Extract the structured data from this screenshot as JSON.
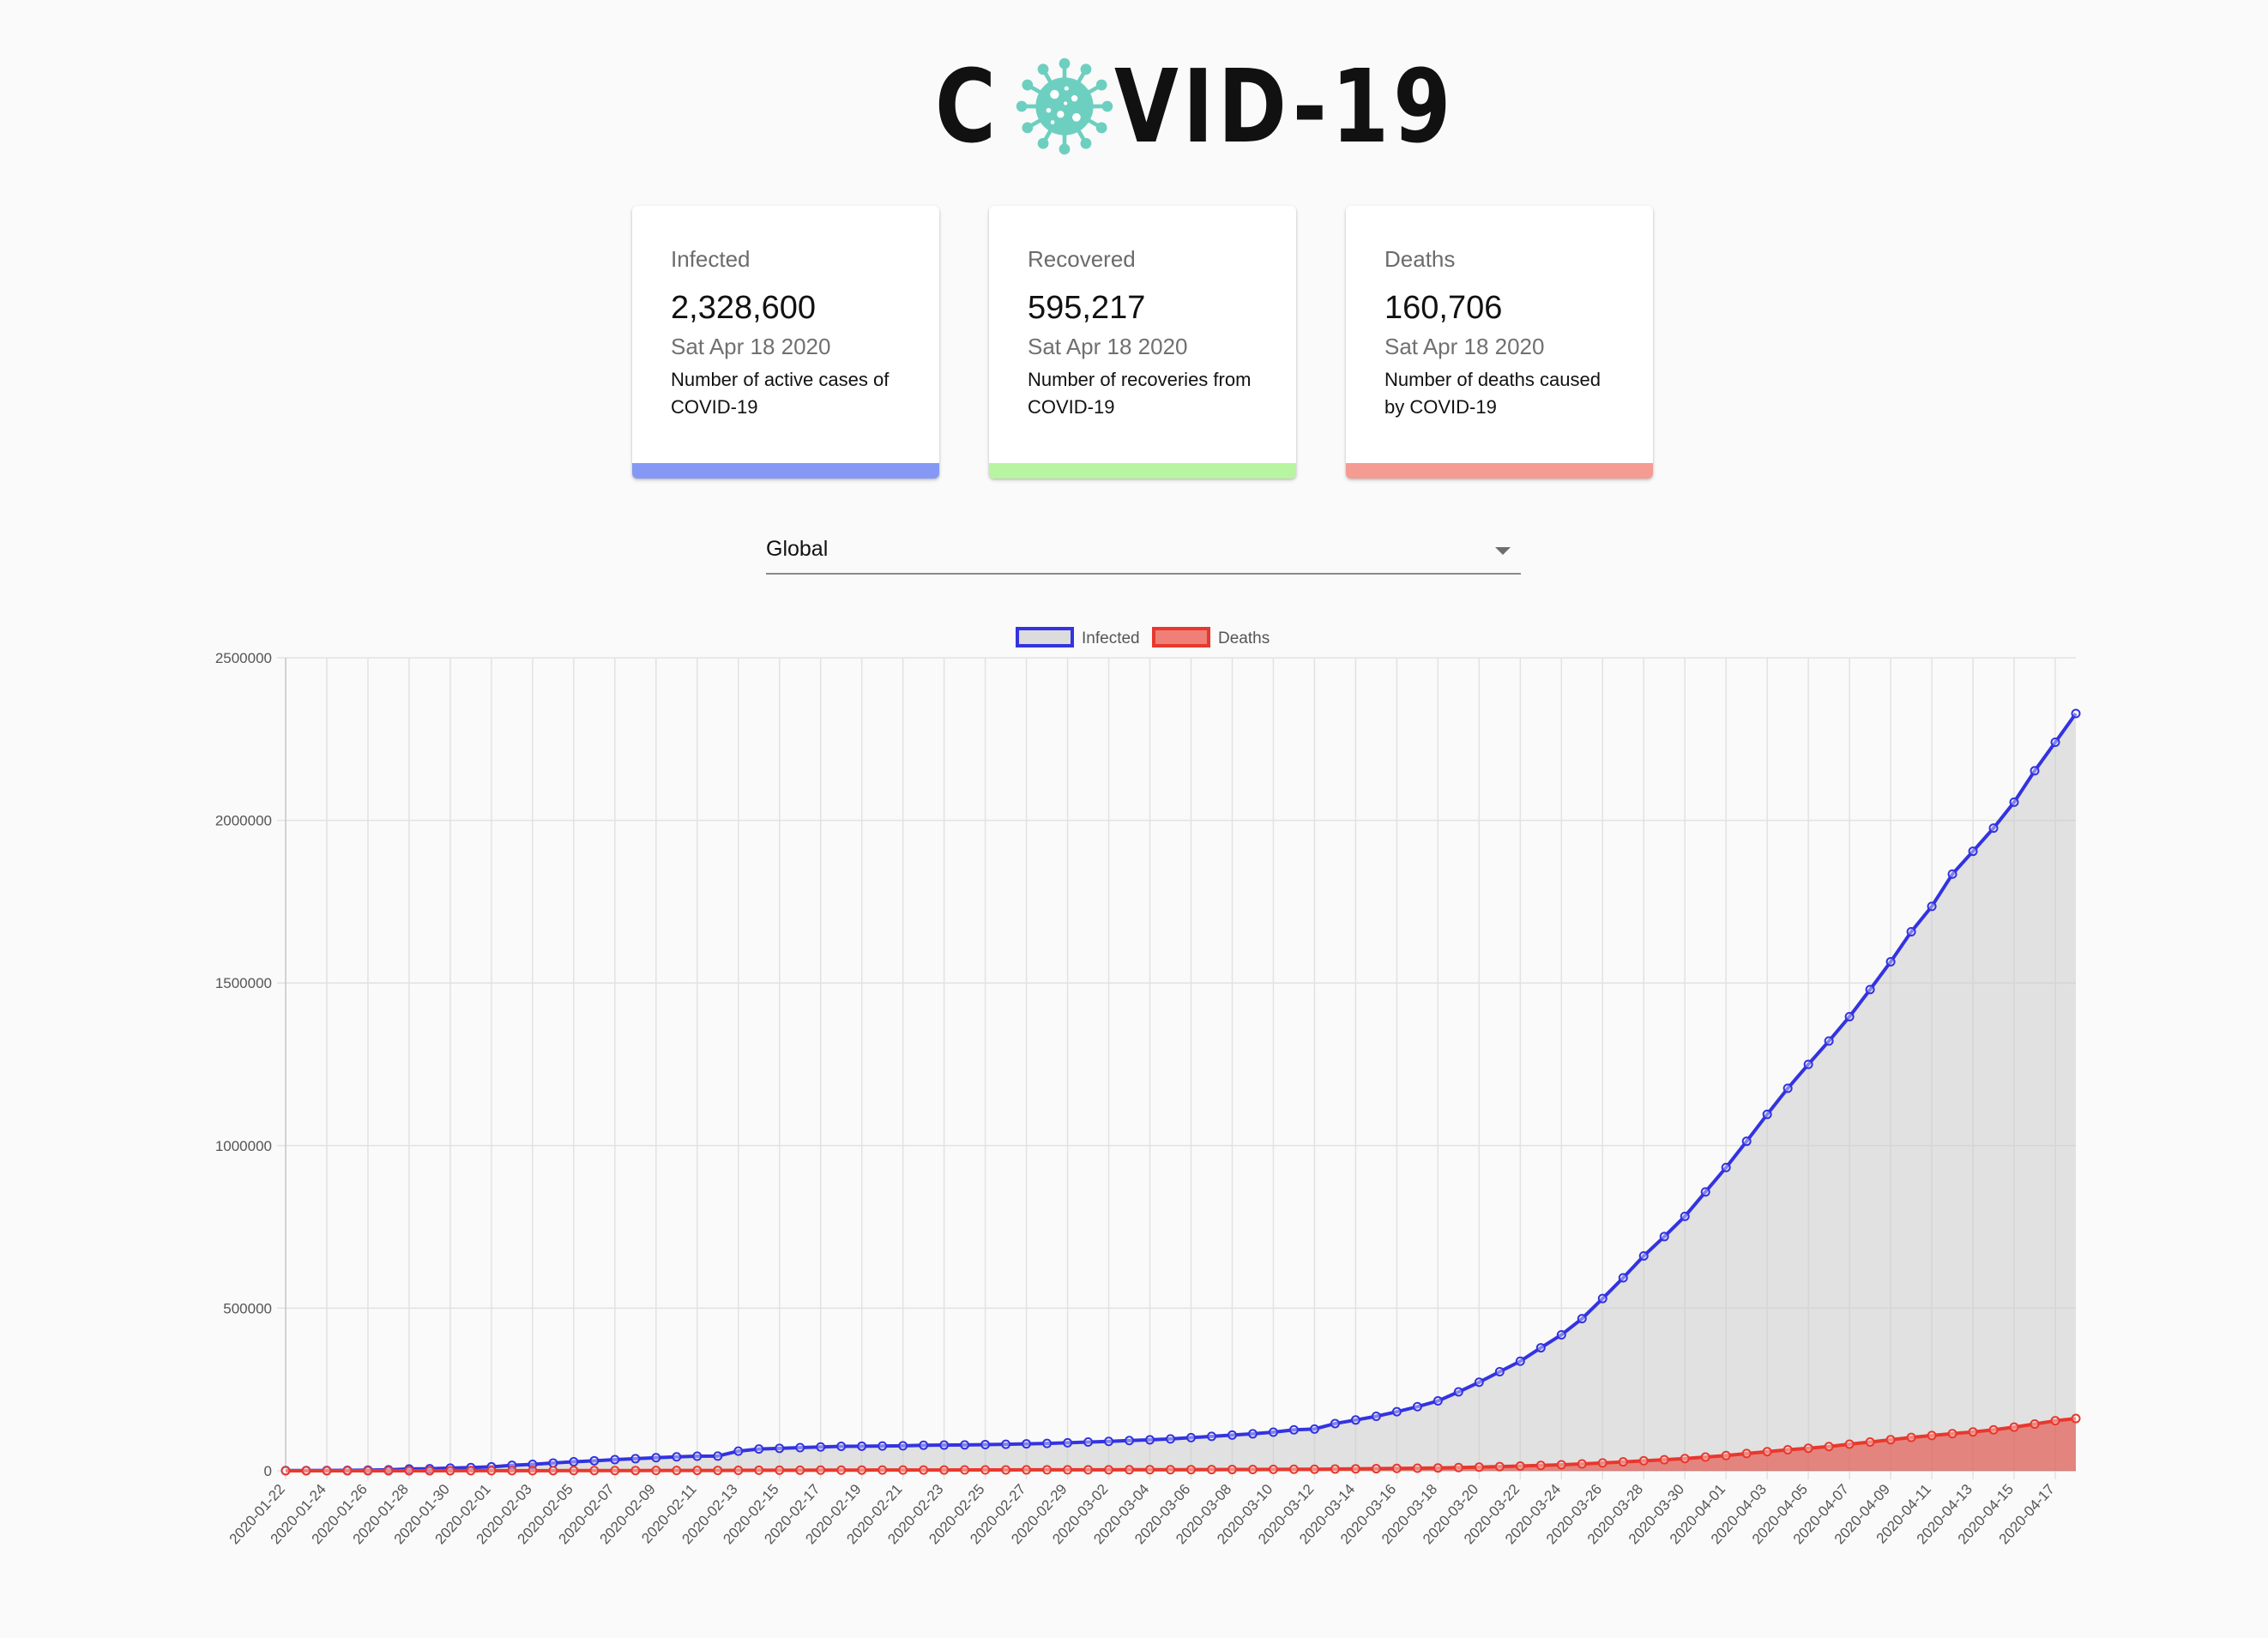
{
  "app": {
    "logo_text_left": "C",
    "logo_text_right": "VID-19",
    "logo_icon": "virus-icon",
    "logo_color": "#6dcfc0"
  },
  "cards": [
    {
      "title": "Infected",
      "value": "2,328,600",
      "date": "Sat Apr 18 2020",
      "description": "Number of active cases of COVID-19",
      "bar_color": "#8599f4"
    },
    {
      "title": "Recovered",
      "value": "595,217",
      "date": "Sat Apr 18 2020",
      "description": "Number of recoveries from COVID-19",
      "bar_color": "#b8f5a0"
    },
    {
      "title": "Deaths",
      "value": "160,706",
      "date": "Sat Apr 18 2020",
      "description": "Number of deaths caused by COVID-19",
      "bar_color": "#f49b92"
    }
  ],
  "country_select": {
    "selected": "Global",
    "icon": "dropdown-arrow-icon"
  },
  "chart_data": {
    "type": "line",
    "start_date": "2020-01-22",
    "end_date": "2020-04-18",
    "tick_step_days": 2,
    "ylim": [
      0,
      2500000
    ],
    "yticks": [
      "0",
      "500000",
      "1000000",
      "1500000",
      "2000000",
      "2500000"
    ],
    "legend": [
      {
        "name": "Infected",
        "stroke": "#3333e0",
        "fill": "#dcdcdc"
      },
      {
        "name": "Deaths",
        "stroke": "#e8382d",
        "fill": "#f07f77"
      }
    ],
    "series": [
      {
        "name": "Infected",
        "stroke": "#3333e0",
        "fill": "rgba(200,200,200,0.5)",
        "values": [
          555,
          654,
          941,
          1434,
          2118,
          2927,
          5578,
          6166,
          8234,
          9927,
          12038,
          16787,
          19881,
          23892,
          27635,
          30794,
          34391,
          37120,
          40150,
          42762,
          44802,
          45221,
          60368,
          66885,
          69030,
          71224,
          73258,
          75136,
          75639,
          76197,
          76819,
          78572,
          78958,
          79561,
          80406,
          81388,
          82746,
          84112,
          86011,
          88369,
          90306,
          92840,
          95120,
          97886,
          101801,
          105847,
          109821,
          113590,
          118620,
          125875,
          128352,
          145205,
          156101,
          167454,
          181574,
          197102,
          214821,
          242570,
          272208,
          304507,
          336953,
          378235,
          418045,
          467653,
          529591,
          593291,
          660706,
          720117,
          782365,
          857487,
          932605,
          1013157,
          1095917,
          1176060,
          1249754,
          1321481,
          1396476,
          1479804,
          1565278,
          1657526,
          1735650,
          1834721,
          1904838,
          1976191,
          2056054,
          2152437,
          2240191,
          2328600
        ]
      },
      {
        "name": "Deaths",
        "stroke": "#e8382d",
        "fill": "rgba(232,56,45,0.55)",
        "values": [
          17,
          18,
          26,
          42,
          56,
          82,
          131,
          133,
          171,
          213,
          259,
          362,
          426,
          492,
          564,
          634,
          719,
          806,
          906,
          1013,
          1113,
          1118,
          1371,
          1523,
          1666,
          1770,
          1868,
          2007,
          2122,
          2247,
          2251,
          2458,
          2469,
          2629,
          2708,
          2770,
          2814,
          2872,
          2941,
          2996,
          3085,
          3160,
          3254,
          3348,
          3460,
          3558,
          3803,
          3996,
          4262,
          4615,
          4720,
          5404,
          5819,
          6440,
          7126,
          7905,
          8733,
          9867,
          11299,
          12973,
          14623,
          16497,
          18615,
          21181,
          23970,
          27198,
          30652,
          33925,
          37582,
          42107,
          46809,
          52983,
          58787,
          64606,
          69374,
          74565,
          81865,
          88338,
          95455,
          102525,
          108503,
          114091,
          119482,
          125983,
          134176,
          143800,
          153822,
          160706
        ]
      }
    ]
  }
}
